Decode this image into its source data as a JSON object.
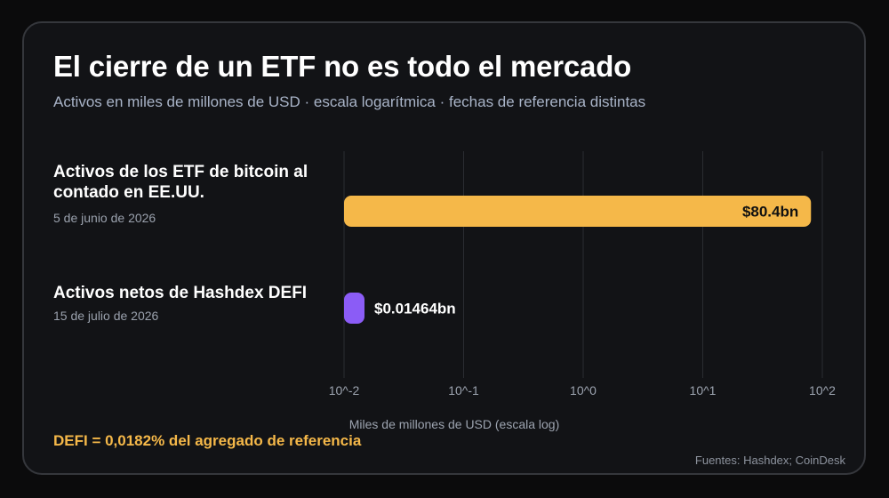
{
  "header": {
    "title": "El cierre de un ETF no es todo el mercado",
    "subtitle": "Activos en miles de millones de USD · escala logarítmica · fechas de referencia distintas"
  },
  "rows": [
    {
      "label": "Activos de los ETF de bitcoin al contado en EE.UU.",
      "date": "5 de junio de 2026"
    },
    {
      "label": "Activos netos de Hashdex DEFI",
      "date": "15 de julio de 2026"
    }
  ],
  "chart_data": {
    "type": "bar",
    "orientation": "horizontal",
    "scale": "log",
    "categories": [
      "Activos de los ETF de bitcoin al contado en EE.UU.",
      "Activos netos de Hashdex DEFI"
    ],
    "values": [
      80.4,
      0.01464
    ],
    "value_labels": [
      "$80.4bn",
      "$0.01464bn"
    ],
    "xlim": [
      0.01,
      100
    ],
    "x_ticks": [
      0.01,
      0.1,
      1,
      10,
      100
    ],
    "x_tick_labels": [
      "10^-2",
      "10^-1",
      "10^0",
      "10^1",
      "10^2"
    ],
    "xlabel": "Miles de millones de USD (escala log)",
    "grid": true,
    "colors": [
      "#f5b849",
      "#8b5cf6"
    ],
    "label_colors": [
      "#111111",
      "#ffffff"
    ]
  },
  "footnote": "DEFI = 0,0182% del agregado de referencia",
  "source": "Fuentes: Hashdex; CoinDesk"
}
